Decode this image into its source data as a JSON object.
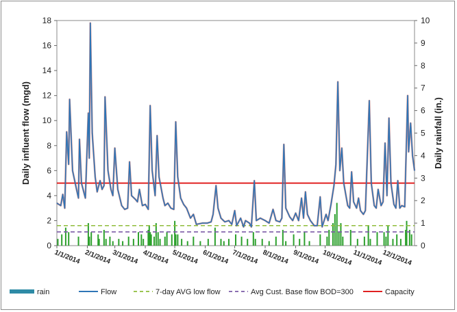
{
  "chart_data": {
    "type": "line",
    "ylabel_left": "Daily influent flow (mgd)",
    "ylabel_right": "Daily rainfall (in.)",
    "ylim_left": [
      0,
      18
    ],
    "ylim_right": [
      0,
      10
    ],
    "yticks_left": [
      0,
      2,
      4,
      6,
      8,
      10,
      12,
      14,
      16,
      18
    ],
    "yticks_right": [
      0,
      1,
      2,
      3,
      4,
      5,
      6,
      7,
      8,
      9,
      10
    ],
    "x_range": [
      "2014-01-01",
      "2014-12-31"
    ],
    "xtick_labels": [
      "1/1/2014",
      "2/1/2014",
      "3/1/2014",
      "4/1/2014",
      "5/1/2014",
      "6/1/2014",
      "7/1/2014",
      "8/1/2014",
      "9/1/2014",
      "10/1/2014",
      "11/1/2014",
      "12/1/2014"
    ],
    "xtick_dates": [
      "2014-01-01",
      "2014-02-01",
      "2014-03-01",
      "2014-04-01",
      "2014-05-01",
      "2014-06-01",
      "2014-07-01",
      "2014-08-01",
      "2014-09-01",
      "2014-10-01",
      "2014-11-01",
      "2014-12-01"
    ],
    "flow_series": {
      "name": "Flow",
      "color": "#2e75b6",
      "points": [
        [
          "2014-01-01",
          3.4
        ],
        [
          "2014-01-05",
          3.2
        ],
        [
          "2014-01-07",
          4.1
        ],
        [
          "2014-01-09",
          3.0
        ],
        [
          "2014-01-11",
          9.1
        ],
        [
          "2014-01-13",
          6.5
        ],
        [
          "2014-01-14",
          11.7
        ],
        [
          "2014-01-17",
          6.0
        ],
        [
          "2014-01-21",
          4.5
        ],
        [
          "2014-01-23",
          3.8
        ],
        [
          "2014-01-24",
          8.5
        ],
        [
          "2014-01-26",
          5.0
        ],
        [
          "2014-01-30",
          3.8
        ],
        [
          "2014-02-02",
          10.6
        ],
        [
          "2014-02-03",
          7.0
        ],
        [
          "2014-02-04",
          17.8
        ],
        [
          "2014-02-06",
          9.0
        ],
        [
          "2014-02-09",
          5.5
        ],
        [
          "2014-02-11",
          4.3
        ],
        [
          "2014-02-14",
          5.2
        ],
        [
          "2014-02-16",
          4.5
        ],
        [
          "2014-02-18",
          4.8
        ],
        [
          "2014-02-19",
          11.9
        ],
        [
          "2014-02-22",
          6.0
        ],
        [
          "2014-02-25",
          4.5
        ],
        [
          "2014-02-27",
          4.0
        ],
        [
          "2014-03-01",
          7.8
        ],
        [
          "2014-03-04",
          4.5
        ],
        [
          "2014-03-08",
          3.2
        ],
        [
          "2014-03-11",
          2.9
        ],
        [
          "2014-03-14",
          3.0
        ],
        [
          "2014-03-16",
          6.7
        ],
        [
          "2014-03-18",
          4.0
        ],
        [
          "2014-03-22",
          3.7
        ],
        [
          "2014-03-24",
          3.5
        ],
        [
          "2014-03-26",
          4.5
        ],
        [
          "2014-03-29",
          3.2
        ],
        [
          "2014-04-01",
          3.3
        ],
        [
          "2014-04-04",
          2.9
        ],
        [
          "2014-04-06",
          11.2
        ],
        [
          "2014-04-08",
          6.0
        ],
        [
          "2014-04-11",
          4.0
        ],
        [
          "2014-04-13",
          8.8
        ],
        [
          "2014-04-15",
          5.5
        ],
        [
          "2014-04-19",
          3.8
        ],
        [
          "2014-04-21",
          3.2
        ],
        [
          "2014-04-24",
          3.4
        ],
        [
          "2014-04-27",
          3.0
        ],
        [
          "2014-04-30",
          2.9
        ],
        [
          "2014-05-02",
          9.9
        ],
        [
          "2014-05-04",
          5.5
        ],
        [
          "2014-05-07",
          3.8
        ],
        [
          "2014-05-10",
          3.3
        ],
        [
          "2014-05-13",
          3.0
        ],
        [
          "2014-05-17",
          2.2
        ],
        [
          "2014-05-20",
          2.5
        ],
        [
          "2014-05-23",
          1.7
        ],
        [
          "2014-05-29",
          1.8
        ],
        [
          "2014-06-03",
          1.8
        ],
        [
          "2014-06-07",
          1.9
        ],
        [
          "2014-06-09",
          2.5
        ],
        [
          "2014-06-12",
          4.8
        ],
        [
          "2014-06-14",
          3.0
        ],
        [
          "2014-06-17",
          2.2
        ],
        [
          "2014-06-21",
          1.9
        ],
        [
          "2014-06-25",
          2.0
        ],
        [
          "2014-06-28",
          1.7
        ],
        [
          "2014-07-01",
          2.8
        ],
        [
          "2014-07-03",
          1.6
        ],
        [
          "2014-07-07",
          2.2
        ],
        [
          "2014-07-10",
          1.5
        ],
        [
          "2014-07-12",
          2.0
        ],
        [
          "2014-07-16",
          1.8
        ],
        [
          "2014-07-18",
          1.5
        ],
        [
          "2014-07-21",
          5.2
        ],
        [
          "2014-07-23",
          2.0
        ],
        [
          "2014-07-27",
          2.2
        ],
        [
          "2014-08-01",
          2.0
        ],
        [
          "2014-08-05",
          1.8
        ],
        [
          "2014-08-09",
          2.9
        ],
        [
          "2014-08-12",
          2.0
        ],
        [
          "2014-08-16",
          1.9
        ],
        [
          "2014-08-18",
          2.2
        ],
        [
          "2014-08-20",
          8.1
        ],
        [
          "2014-08-22",
          3.0
        ],
        [
          "2014-08-26",
          2.3
        ],
        [
          "2014-08-29",
          2.0
        ],
        [
          "2014-09-01",
          2.6
        ],
        [
          "2014-09-04",
          2.0
        ],
        [
          "2014-09-07",
          3.8
        ],
        [
          "2014-09-09",
          2.2
        ],
        [
          "2014-09-11",
          4.3
        ],
        [
          "2014-09-13",
          2.5
        ],
        [
          "2014-09-16",
          2.0
        ],
        [
          "2014-09-20",
          1.6
        ],
        [
          "2014-09-23",
          1.6
        ],
        [
          "2014-09-26",
          3.9
        ],
        [
          "2014-09-28",
          1.5
        ],
        [
          "2014-10-02",
          2.5
        ],
        [
          "2014-10-04",
          2.0
        ],
        [
          "2014-10-07",
          3.3
        ],
        [
          "2014-10-10",
          4.8
        ],
        [
          "2014-10-12",
          6.5
        ],
        [
          "2014-10-14",
          13.1
        ],
        [
          "2014-10-16",
          6.0
        ],
        [
          "2014-10-18",
          7.8
        ],
        [
          "2014-10-20",
          5.0
        ],
        [
          "2014-10-24",
          3.2
        ],
        [
          "2014-10-26",
          3.0
        ],
        [
          "2014-10-28",
          5.9
        ],
        [
          "2014-10-30",
          3.5
        ],
        [
          "2014-11-02",
          3.0
        ],
        [
          "2014-11-04",
          3.8
        ],
        [
          "2014-11-06",
          2.8
        ],
        [
          "2014-11-09",
          2.5
        ],
        [
          "2014-11-11",
          2.8
        ],
        [
          "2014-11-15",
          11.6
        ],
        [
          "2014-11-17",
          5.0
        ],
        [
          "2014-11-20",
          3.2
        ],
        [
          "2014-11-22",
          3.0
        ],
        [
          "2014-11-24",
          4.5
        ],
        [
          "2014-11-27",
          3.2
        ],
        [
          "2014-11-29",
          3.5
        ],
        [
          "2014-12-01",
          8.2
        ],
        [
          "2014-12-03",
          4.0
        ],
        [
          "2014-12-05",
          10.2
        ],
        [
          "2014-12-07",
          5.0
        ],
        [
          "2014-12-10",
          3.3
        ],
        [
          "2014-12-12",
          3.0
        ],
        [
          "2014-12-14",
          5.2
        ],
        [
          "2014-12-16",
          3.0
        ],
        [
          "2014-12-18",
          3.2
        ],
        [
          "2014-12-21",
          3.1
        ],
        [
          "2014-12-24",
          12.0
        ],
        [
          "2014-12-25",
          7.5
        ],
        [
          "2014-12-27",
          9.8
        ],
        [
          "2014-12-29",
          7.2
        ],
        [
          "2014-12-31",
          6.0
        ]
      ]
    },
    "rain_series": {
      "name": "rain",
      "color": "#2ca02c",
      "legend_color": "#2e8ba6",
      "points": [
        [
          "2014-01-02",
          0.3
        ],
        [
          "2014-01-06",
          0.5
        ],
        [
          "2014-01-10",
          0.8
        ],
        [
          "2014-01-13",
          0.6
        ],
        [
          "2014-01-23",
          0.4
        ],
        [
          "2014-02-02",
          1.0
        ],
        [
          "2014-02-03",
          0.4
        ],
        [
          "2014-02-05",
          0.6
        ],
        [
          "2014-02-12",
          0.5
        ],
        [
          "2014-02-13",
          0.3
        ],
        [
          "2014-02-18",
          0.7
        ],
        [
          "2014-02-20",
          0.3
        ],
        [
          "2014-02-24",
          0.4
        ],
        [
          "2014-02-27",
          0.2
        ],
        [
          "2014-03-05",
          0.3
        ],
        [
          "2014-03-09",
          0.2
        ],
        [
          "2014-03-15",
          0.4
        ],
        [
          "2014-03-20",
          0.3
        ],
        [
          "2014-03-25",
          0.6
        ],
        [
          "2014-03-28",
          0.5
        ],
        [
          "2014-03-30",
          0.3
        ],
        [
          "2014-04-04",
          0.7
        ],
        [
          "2014-04-05",
          0.9
        ],
        [
          "2014-04-06",
          0.6
        ],
        [
          "2014-04-07",
          0.5
        ],
        [
          "2014-04-10",
          0.4
        ],
        [
          "2014-04-12",
          1.0
        ],
        [
          "2014-04-14",
          0.6
        ],
        [
          "2014-04-16",
          0.3
        ],
        [
          "2014-04-21",
          0.4
        ],
        [
          "2014-04-23",
          0.6
        ],
        [
          "2014-04-28",
          0.5
        ],
        [
          "2014-05-01",
          1.1
        ],
        [
          "2014-05-02",
          0.5
        ],
        [
          "2014-05-04",
          0.5
        ],
        [
          "2014-05-08",
          0.3
        ],
        [
          "2014-05-14",
          0.2
        ],
        [
          "2014-05-20",
          0.4
        ],
        [
          "2014-05-27",
          0.2
        ],
        [
          "2014-06-04",
          0.3
        ],
        [
          "2014-06-11",
          0.8
        ],
        [
          "2014-06-17",
          0.3
        ],
        [
          "2014-06-20",
          0.2
        ],
        [
          "2014-06-25",
          0.3
        ],
        [
          "2014-07-02",
          0.5
        ],
        [
          "2014-07-08",
          0.4
        ],
        [
          "2014-07-14",
          0.3
        ],
        [
          "2014-07-20",
          0.6
        ],
        [
          "2014-07-22",
          0.3
        ],
        [
          "2014-07-29",
          0.3
        ],
        [
          "2014-08-05",
          0.2
        ],
        [
          "2014-08-12",
          0.4
        ],
        [
          "2014-08-19",
          0.7
        ],
        [
          "2014-08-22",
          0.2
        ],
        [
          "2014-08-30",
          0.5
        ],
        [
          "2014-09-05",
          0.3
        ],
        [
          "2014-09-10",
          0.6
        ],
        [
          "2014-09-15",
          0.2
        ],
        [
          "2014-09-26",
          0.5
        ],
        [
          "2014-10-03",
          0.4
        ],
        [
          "2014-10-05",
          0.7
        ],
        [
          "2014-10-09",
          1.0
        ],
        [
          "2014-10-11",
          1.4
        ],
        [
          "2014-10-13",
          1.9
        ],
        [
          "2014-10-15",
          0.6
        ],
        [
          "2014-10-17",
          1.0
        ],
        [
          "2014-10-19",
          0.4
        ],
        [
          "2014-10-27",
          0.7
        ],
        [
          "2014-11-03",
          0.3
        ],
        [
          "2014-11-10",
          0.4
        ],
        [
          "2014-11-14",
          0.9
        ],
        [
          "2014-11-16",
          0.3
        ],
        [
          "2014-11-23",
          0.6
        ],
        [
          "2014-11-30",
          0.6
        ],
        [
          "2014-12-02",
          0.4
        ],
        [
          "2014-12-04",
          0.9
        ],
        [
          "2014-12-09",
          0.3
        ],
        [
          "2014-12-13",
          0.5
        ],
        [
          "2014-12-17",
          0.3
        ],
        [
          "2014-12-22",
          0.7
        ],
        [
          "2014-12-23",
          1.1
        ],
        [
          "2014-12-26",
          0.7
        ],
        [
          "2014-12-28",
          0.5
        ]
      ]
    },
    "reference_lines": [
      {
        "name": "7-day AVG low flow",
        "value": 1.6,
        "axis": "left",
        "color": "#8fbc3a",
        "style": "dashed"
      },
      {
        "name": "Avg Cust. Base flow BOD=300",
        "value": 1.1,
        "axis": "left",
        "color": "#7b5aa6",
        "style": "dashed"
      },
      {
        "name": "Capacity",
        "value": 5.0,
        "axis": "left",
        "color": "#e02020",
        "style": "solid"
      }
    ],
    "legend": [
      {
        "label": "rain",
        "kind": "patch",
        "color": "#2e8ba6"
      },
      {
        "label": "Flow",
        "kind": "line",
        "color": "#2e75b6"
      },
      {
        "label": "7-day AVG low flow",
        "kind": "dashed",
        "color": "#8fbc3a"
      },
      {
        "label": "Avg Cust. Base flow BOD=300",
        "kind": "dashed",
        "color": "#7b5aa6"
      },
      {
        "label": "Capacity",
        "kind": "line",
        "color": "#e02020"
      }
    ],
    "legend_position": "bottom",
    "grid": false
  }
}
